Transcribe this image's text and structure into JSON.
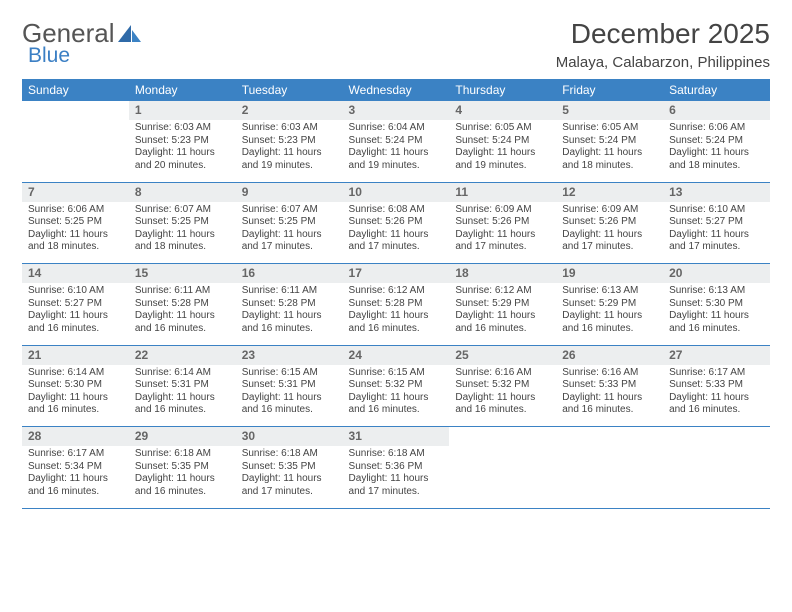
{
  "brand": {
    "word1": "General",
    "word2": "Blue"
  },
  "colors": {
    "brand_blue": "#3b7fc4",
    "header_blue": "#3b82c4",
    "daynum_bg": "#eceeef",
    "text": "#444444",
    "bg": "#ffffff"
  },
  "title": "December 2025",
  "location": "Malaya, Calabarzon, Philippines",
  "weekdays": [
    "Sunday",
    "Monday",
    "Tuesday",
    "Wednesday",
    "Thursday",
    "Friday",
    "Saturday"
  ],
  "weeks": [
    {
      "nums": [
        "",
        "1",
        "2",
        "3",
        "4",
        "5",
        "6"
      ],
      "cells": [
        null,
        {
          "sr": "6:03 AM",
          "ss": "5:23 PM",
          "dl": "11 hours and 20 minutes."
        },
        {
          "sr": "6:03 AM",
          "ss": "5:23 PM",
          "dl": "11 hours and 19 minutes."
        },
        {
          "sr": "6:04 AM",
          "ss": "5:24 PM",
          "dl": "11 hours and 19 minutes."
        },
        {
          "sr": "6:05 AM",
          "ss": "5:24 PM",
          "dl": "11 hours and 19 minutes."
        },
        {
          "sr": "6:05 AM",
          "ss": "5:24 PM",
          "dl": "11 hours and 18 minutes."
        },
        {
          "sr": "6:06 AM",
          "ss": "5:24 PM",
          "dl": "11 hours and 18 minutes."
        }
      ]
    },
    {
      "nums": [
        "7",
        "8",
        "9",
        "10",
        "11",
        "12",
        "13"
      ],
      "cells": [
        {
          "sr": "6:06 AM",
          "ss": "5:25 PM",
          "dl": "11 hours and 18 minutes."
        },
        {
          "sr": "6:07 AM",
          "ss": "5:25 PM",
          "dl": "11 hours and 18 minutes."
        },
        {
          "sr": "6:07 AM",
          "ss": "5:25 PM",
          "dl": "11 hours and 17 minutes."
        },
        {
          "sr": "6:08 AM",
          "ss": "5:26 PM",
          "dl": "11 hours and 17 minutes."
        },
        {
          "sr": "6:09 AM",
          "ss": "5:26 PM",
          "dl": "11 hours and 17 minutes."
        },
        {
          "sr": "6:09 AM",
          "ss": "5:26 PM",
          "dl": "11 hours and 17 minutes."
        },
        {
          "sr": "6:10 AM",
          "ss": "5:27 PM",
          "dl": "11 hours and 17 minutes."
        }
      ]
    },
    {
      "nums": [
        "14",
        "15",
        "16",
        "17",
        "18",
        "19",
        "20"
      ],
      "cells": [
        {
          "sr": "6:10 AM",
          "ss": "5:27 PM",
          "dl": "11 hours and 16 minutes."
        },
        {
          "sr": "6:11 AM",
          "ss": "5:28 PM",
          "dl": "11 hours and 16 minutes."
        },
        {
          "sr": "6:11 AM",
          "ss": "5:28 PM",
          "dl": "11 hours and 16 minutes."
        },
        {
          "sr": "6:12 AM",
          "ss": "5:28 PM",
          "dl": "11 hours and 16 minutes."
        },
        {
          "sr": "6:12 AM",
          "ss": "5:29 PM",
          "dl": "11 hours and 16 minutes."
        },
        {
          "sr": "6:13 AM",
          "ss": "5:29 PM",
          "dl": "11 hours and 16 minutes."
        },
        {
          "sr": "6:13 AM",
          "ss": "5:30 PM",
          "dl": "11 hours and 16 minutes."
        }
      ]
    },
    {
      "nums": [
        "21",
        "22",
        "23",
        "24",
        "25",
        "26",
        "27"
      ],
      "cells": [
        {
          "sr": "6:14 AM",
          "ss": "5:30 PM",
          "dl": "11 hours and 16 minutes."
        },
        {
          "sr": "6:14 AM",
          "ss": "5:31 PM",
          "dl": "11 hours and 16 minutes."
        },
        {
          "sr": "6:15 AM",
          "ss": "5:31 PM",
          "dl": "11 hours and 16 minutes."
        },
        {
          "sr": "6:15 AM",
          "ss": "5:32 PM",
          "dl": "11 hours and 16 minutes."
        },
        {
          "sr": "6:16 AM",
          "ss": "5:32 PM",
          "dl": "11 hours and 16 minutes."
        },
        {
          "sr": "6:16 AM",
          "ss": "5:33 PM",
          "dl": "11 hours and 16 minutes."
        },
        {
          "sr": "6:17 AM",
          "ss": "5:33 PM",
          "dl": "11 hours and 16 minutes."
        }
      ]
    },
    {
      "nums": [
        "28",
        "29",
        "30",
        "31",
        "",
        "",
        ""
      ],
      "cells": [
        {
          "sr": "6:17 AM",
          "ss": "5:34 PM",
          "dl": "11 hours and 16 minutes."
        },
        {
          "sr": "6:18 AM",
          "ss": "5:35 PM",
          "dl": "11 hours and 16 minutes."
        },
        {
          "sr": "6:18 AM",
          "ss": "5:35 PM",
          "dl": "11 hours and 17 minutes."
        },
        {
          "sr": "6:18 AM",
          "ss": "5:36 PM",
          "dl": "11 hours and 17 minutes."
        },
        null,
        null,
        null
      ]
    }
  ],
  "labels": {
    "sunrise": "Sunrise:",
    "sunset": "Sunset:",
    "daylight": "Daylight:"
  }
}
